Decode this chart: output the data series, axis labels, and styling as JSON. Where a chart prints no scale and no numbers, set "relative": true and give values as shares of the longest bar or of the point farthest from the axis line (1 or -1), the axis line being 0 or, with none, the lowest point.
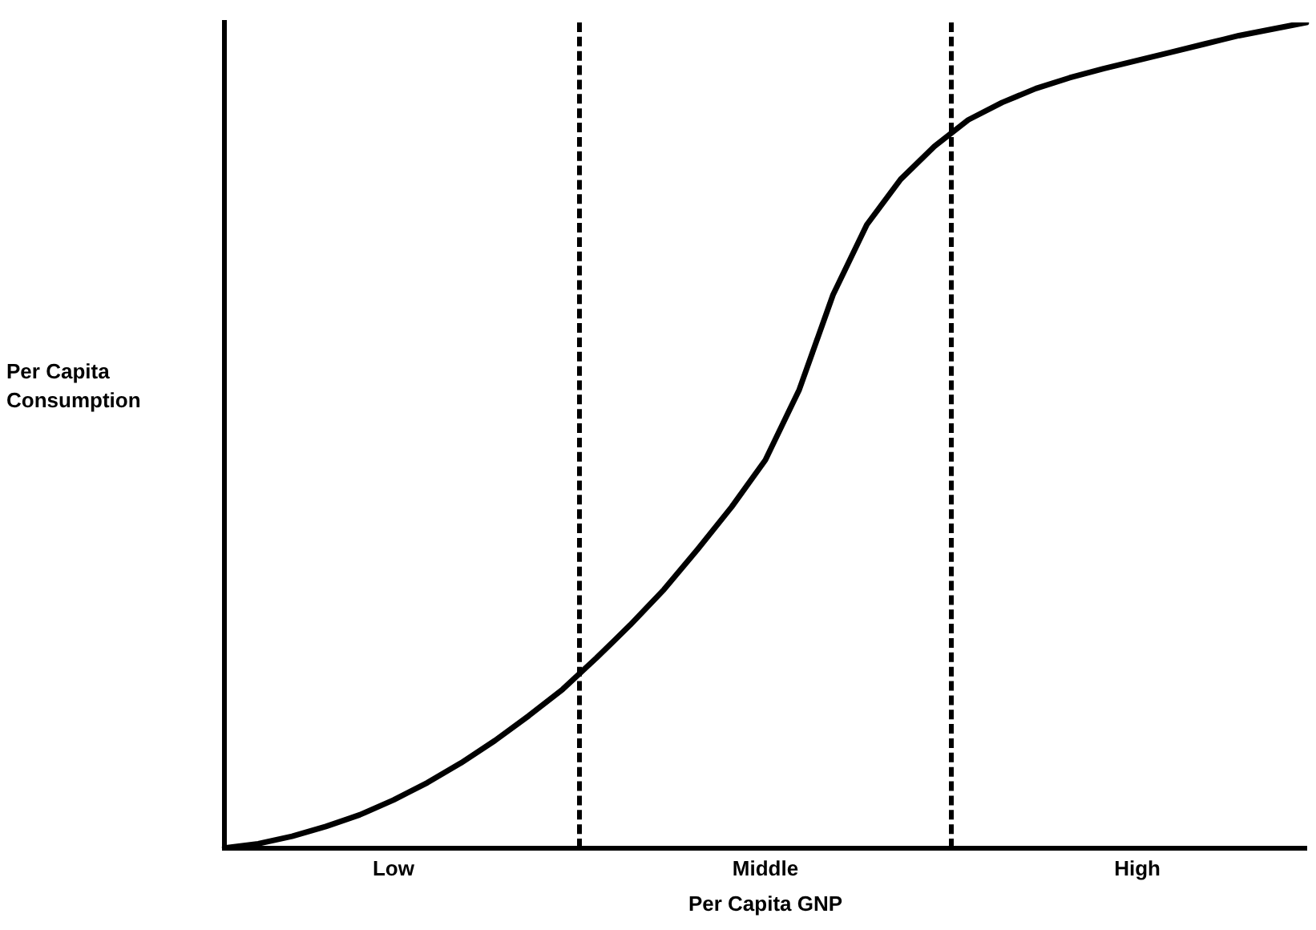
{
  "chart_data": {
    "type": "line",
    "relative": true,
    "xlabel": "Per Capita GNP",
    "ylabel": "Per Capita Consumption",
    "grid": false,
    "legend": false,
    "marker": "none",
    "line_style": "solid",
    "categories": [
      null,
      null,
      null,
      null,
      null,
      "Low",
      null,
      null,
      null,
      null,
      null,
      null,
      null,
      null,
      null,
      null,
      "Middle",
      null,
      null,
      null,
      null,
      null,
      null,
      null,
      null,
      null,
      null,
      "High",
      null,
      null,
      null,
      null,
      null
    ],
    "series": [
      {
        "color": "#000000",
        "values": [
          0,
          0.005,
          0.014,
          0.026,
          0.04,
          0.058,
          0.079,
          0.103,
          0.13,
          0.16,
          0.192,
          0.23,
          0.27,
          0.313,
          0.362,
          0.413,
          0.47,
          0.555,
          0.67,
          0.755,
          0.81,
          0.85,
          0.882,
          0.903,
          0.92,
          0.933,
          0.944,
          0.954,
          0.964,
          0.974,
          0.984,
          0.992,
          1
        ]
      }
    ]
  }
}
